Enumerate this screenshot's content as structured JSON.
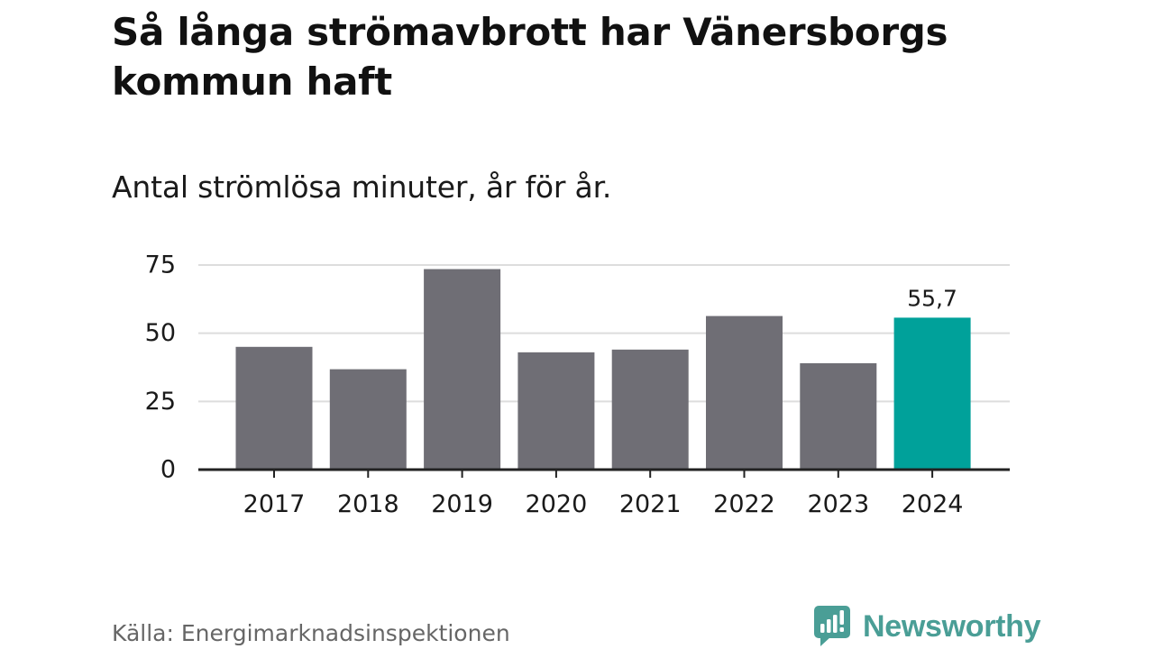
{
  "header": {
    "title": "Så långa strömavbrott har Vänersborgs kommun haft",
    "subtitle": "Antal strömlösa minuter, år för år."
  },
  "footer": {
    "source": "Källa: Energimarknadsinspektionen",
    "brand": "Newsworthy",
    "brand_icon": "newsworthy-logo-icon"
  },
  "colors": {
    "bar": "#6f6e75",
    "highlight": "#00a19a",
    "grid": "#dddddd",
    "axis": "#222222",
    "text": "#1a1a1a",
    "brand": "#4a9e96"
  },
  "chart_data": {
    "type": "bar",
    "title": "Så långa strömavbrott har Vänersborgs kommun haft",
    "subtitle": "Antal strömlösa minuter, år för år.",
    "xlabel": "",
    "ylabel": "",
    "categories": [
      "2017",
      "2018",
      "2019",
      "2020",
      "2021",
      "2022",
      "2023",
      "2024"
    ],
    "values": [
      45,
      36.8,
      73.5,
      43,
      44,
      56.3,
      39,
      55.7
    ],
    "ylim": [
      0,
      75
    ],
    "yticks": [
      0,
      25,
      50,
      75
    ],
    "ytick_labels": [
      "0",
      "25",
      "50",
      "75"
    ],
    "grid": true,
    "legend": "none",
    "highlight_index": 7,
    "annotations": [
      {
        "category": "2024",
        "label": "55,7"
      }
    ]
  }
}
